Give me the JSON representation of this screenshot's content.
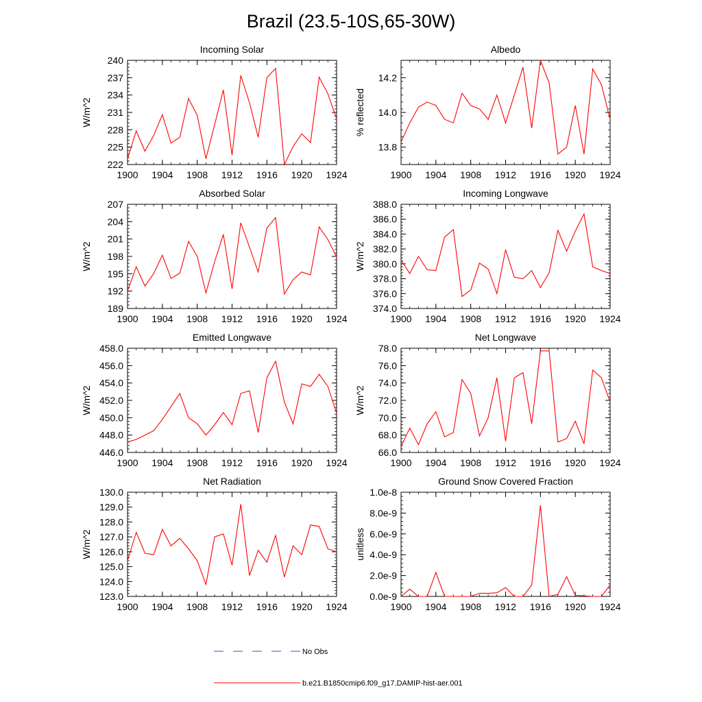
{
  "figure": {
    "title": "Brazil (23.5-10S,65-30W)",
    "legend": [
      {
        "label": "No Obs",
        "color": "#4444cc",
        "style": "dashed"
      },
      {
        "label": "b.e21.B1850cmip6.f09_g17.DAMIP-hist-aer.001",
        "color": "#ff0000",
        "style": "solid"
      }
    ]
  },
  "chart_data": [
    {
      "type": "line",
      "title": "Incoming Solar",
      "xlabel": "",
      "ylabel": "W/m^2",
      "xlim": [
        1900,
        1924
      ],
      "ylim": [
        222,
        240
      ],
      "xticks": [
        1900,
        1904,
        1908,
        1912,
        1916,
        1920,
        1924
      ],
      "yticks": [
        222,
        225,
        228,
        231,
        234,
        237,
        240
      ],
      "ytick_labels": [
        "222",
        "225",
        "228",
        "231",
        "234",
        "237",
        "240"
      ],
      "series": [
        {
          "color": "#ff0000",
          "x": [
            1900,
            1901,
            1902,
            1903,
            1904,
            1905,
            1906,
            1907,
            1908,
            1909,
            1910,
            1911,
            1912,
            1913,
            1914,
            1915,
            1916,
            1917,
            1918,
            1919,
            1920,
            1921,
            1922,
            1923,
            1924
          ],
          "values": [
            223,
            227.8,
            224.3,
            227,
            230.6,
            225.7,
            226.7,
            233.4,
            230.5,
            223,
            228.9,
            234.9,
            223.6,
            237.4,
            232.7,
            226.7,
            237,
            238.6,
            222,
            225.1,
            227.3,
            225.8,
            237.1,
            234.2,
            229.9
          ]
        }
      ]
    },
    {
      "type": "line",
      "title": "Albedo",
      "xlabel": "",
      "ylabel": "% reflected",
      "xlim": [
        1900,
        1924
      ],
      "ylim": [
        13.7,
        14.3
      ],
      "xticks": [
        1900,
        1904,
        1908,
        1912,
        1916,
        1920,
        1924
      ],
      "yticks": [
        13.8,
        14.0,
        14.2
      ],
      "ytick_labels": [
        "13.8",
        "14.0",
        "14.2"
      ],
      "series": [
        {
          "color": "#ff0000",
          "x": [
            1900,
            1901,
            1902,
            1903,
            1904,
            1905,
            1906,
            1907,
            1908,
            1909,
            1910,
            1911,
            1912,
            1913,
            1914,
            1915,
            1916,
            1917,
            1918,
            1919,
            1920,
            1921,
            1922,
            1923,
            1924
          ],
          "values": [
            13.83,
            13.94,
            14.03,
            14.06,
            14.04,
            13.96,
            13.94,
            14.11,
            14.04,
            14.02,
            13.96,
            14.1,
            13.94,
            14.1,
            14.26,
            13.91,
            14.3,
            14.17,
            13.76,
            13.8,
            14.04,
            13.76,
            14.25,
            14.16,
            13.96
          ]
        }
      ]
    },
    {
      "type": "line",
      "title": "Absorbed Solar",
      "xlabel": "",
      "ylabel": "W/m^2",
      "xlim": [
        1900,
        1924
      ],
      "ylim": [
        189,
        207
      ],
      "xticks": [
        1900,
        1904,
        1908,
        1912,
        1916,
        1920,
        1924
      ],
      "yticks": [
        189,
        192,
        195,
        198,
        201,
        204,
        207
      ],
      "ytick_labels": [
        "189",
        "192",
        "195",
        "198",
        "201",
        "204",
        "207"
      ],
      "series": [
        {
          "color": "#ff0000",
          "x": [
            1900,
            1901,
            1902,
            1903,
            1904,
            1905,
            1906,
            1907,
            1908,
            1909,
            1910,
            1911,
            1912,
            1913,
            1914,
            1915,
            1916,
            1917,
            1918,
            1919,
            1920,
            1921,
            1922,
            1923,
            1924
          ],
          "values": [
            192,
            196.2,
            192.9,
            195,
            198.2,
            194.2,
            195.1,
            200.6,
            198,
            191.7,
            197.1,
            201.8,
            192.4,
            203.8,
            199.6,
            195.3,
            202.9,
            204.7,
            191.5,
            194,
            195.3,
            194.8,
            203.1,
            200.9,
            197.9
          ]
        }
      ]
    },
    {
      "type": "line",
      "title": "Incoming Longwave",
      "xlabel": "",
      "ylabel": "W/m^2",
      "xlim": [
        1900,
        1924
      ],
      "ylim": [
        374,
        388
      ],
      "xticks": [
        1900,
        1904,
        1908,
        1912,
        1916,
        1920,
        1924
      ],
      "yticks": [
        374,
        376,
        378,
        380,
        382,
        384,
        386,
        388
      ],
      "ytick_labels": [
        "374.0",
        "376.0",
        "378.0",
        "380.0",
        "382.0",
        "384.0",
        "386.0",
        "388.0"
      ],
      "series": [
        {
          "color": "#ff0000",
          "x": [
            1900,
            1901,
            1902,
            1903,
            1904,
            1905,
            1906,
            1907,
            1908,
            1909,
            1910,
            1911,
            1912,
            1913,
            1914,
            1915,
            1916,
            1917,
            1918,
            1919,
            1920,
            1921,
            1922,
            1923,
            1924
          ],
          "values": [
            380.5,
            378.7,
            381,
            379.2,
            379.1,
            383.6,
            384.6,
            375.6,
            376.5,
            380.1,
            379.3,
            376,
            381.9,
            378.2,
            378,
            379.1,
            376.8,
            378.8,
            384.5,
            381.7,
            384.4,
            386.7,
            379.6,
            379.1,
            378.7
          ]
        }
      ]
    },
    {
      "type": "line",
      "title": "Emitted Longwave",
      "xlabel": "",
      "ylabel": "W/m^2",
      "xlim": [
        1900,
        1924
      ],
      "ylim": [
        446,
        458
      ],
      "xticks": [
        1900,
        1904,
        1908,
        1912,
        1916,
        1920,
        1924
      ],
      "yticks": [
        446,
        448,
        450,
        452,
        454,
        456,
        458
      ],
      "ytick_labels": [
        "446.0",
        "448.0",
        "450.0",
        "452.0",
        "454.0",
        "456.0",
        "458.0"
      ],
      "series": [
        {
          "color": "#ff0000",
          "x": [
            1900,
            1901,
            1902,
            1903,
            1904,
            1905,
            1906,
            1907,
            1908,
            1909,
            1910,
            1911,
            1912,
            1913,
            1914,
            1915,
            1916,
            1917,
            1918,
            1919,
            1920,
            1921,
            1922,
            1923,
            1924
          ],
          "values": [
            447.2,
            447.5,
            448,
            448.5,
            449.8,
            451.3,
            452.8,
            450,
            449.3,
            448,
            449.2,
            450.6,
            449.2,
            452.8,
            453.1,
            448.3,
            454.6,
            456.5,
            451.8,
            449.3,
            453.9,
            453.6,
            455,
            453.6,
            450.5
          ]
        }
      ]
    },
    {
      "type": "line",
      "title": "Net Longwave",
      "xlabel": "",
      "ylabel": "W/m^2",
      "xlim": [
        1900,
        1924
      ],
      "ylim": [
        66,
        78
      ],
      "xticks": [
        1900,
        1904,
        1908,
        1912,
        1916,
        1920,
        1924
      ],
      "yticks": [
        66,
        68,
        70,
        72,
        74,
        76,
        78
      ],
      "ytick_labels": [
        "66.0",
        "68.0",
        "70.0",
        "72.0",
        "74.0",
        "76.0",
        "78.0"
      ],
      "series": [
        {
          "color": "#ff0000",
          "x": [
            1900,
            1901,
            1902,
            1903,
            1904,
            1905,
            1906,
            1907,
            1908,
            1909,
            1910,
            1911,
            1912,
            1913,
            1914,
            1915,
            1916,
            1917,
            1918,
            1919,
            1920,
            1921,
            1922,
            1923,
            1924
          ],
          "values": [
            66.7,
            68.8,
            66.9,
            69.3,
            70.7,
            67.8,
            68.3,
            74.4,
            72.8,
            67.9,
            70,
            74.6,
            67.3,
            74.6,
            75.2,
            69.3,
            77.7,
            77.7,
            67.2,
            67.6,
            69.6,
            67,
            75.5,
            74.6,
            71.8
          ]
        }
      ]
    },
    {
      "type": "line",
      "title": "Net Radiation",
      "xlabel": "",
      "ylabel": "W/m^2",
      "xlim": [
        1900,
        1924
      ],
      "ylim": [
        123,
        130
      ],
      "xticks": [
        1900,
        1904,
        1908,
        1912,
        1916,
        1920,
        1924
      ],
      "yticks": [
        123,
        124,
        125,
        126,
        127,
        128,
        129,
        130
      ],
      "ytick_labels": [
        "123.0",
        "124.0",
        "125.0",
        "126.0",
        "127.0",
        "128.0",
        "129.0",
        "130.0"
      ],
      "series": [
        {
          "color": "#ff0000",
          "x": [
            1900,
            1901,
            1902,
            1903,
            1904,
            1905,
            1906,
            1907,
            1908,
            1909,
            1910,
            1911,
            1912,
            1913,
            1914,
            1915,
            1916,
            1917,
            1918,
            1919,
            1920,
            1921,
            1922,
            1923,
            1924
          ],
          "values": [
            125.4,
            127.3,
            125.9,
            125.8,
            127.5,
            126.4,
            126.9,
            126.2,
            125.4,
            123.8,
            127,
            127.2,
            125.1,
            129.2,
            124.4,
            126.1,
            125.3,
            127.1,
            124.3,
            126.4,
            125.8,
            127.8,
            127.7,
            126.2,
            126
          ]
        }
      ]
    },
    {
      "type": "line",
      "title": "Ground Snow Covered Fraction",
      "xlabel": "",
      "ylabel": "unitless",
      "xlim": [
        1900,
        1924
      ],
      "ylim": [
        0,
        1e-08
      ],
      "xticks": [
        1900,
        1904,
        1908,
        1912,
        1916,
        1920,
        1924
      ],
      "yticks": [
        0,
        2e-09,
        4e-09,
        6e-09,
        8e-09,
        1e-08
      ],
      "ytick_labels": [
        "0.0e-9",
        "2.0e-9",
        "4.0e-9",
        "6.0e-9",
        "8.0e-9",
        "1.0e-8"
      ],
      "series": [
        {
          "color": "#ff0000",
          "x": [
            1900,
            1901,
            1902,
            1903,
            1904,
            1905,
            1906,
            1907,
            1908,
            1909,
            1910,
            1911,
            1912,
            1913,
            1914,
            1915,
            1916,
            1917,
            1918,
            1919,
            1920,
            1921,
            1922,
            1923,
            1924
          ],
          "values": [
            0,
            7e-10,
            0,
            0,
            2.3e-09,
            0,
            0,
            0,
            0,
            3e-10,
            3e-10,
            3.5e-10,
            8.5e-10,
            0,
            0,
            1.1e-09,
            8.75e-09,
            0,
            2e-10,
            1.9e-09,
            1e-10,
            5e-11,
            0,
            0,
            1.1e-09
          ]
        }
      ]
    }
  ]
}
